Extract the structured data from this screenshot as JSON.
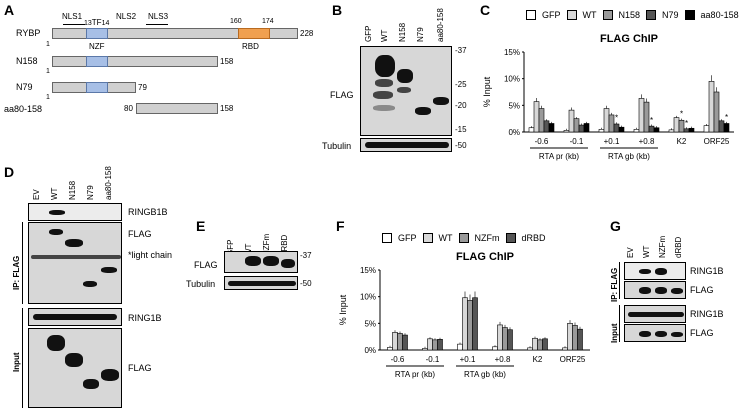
{
  "panels": {
    "A": "A",
    "B": "B",
    "C": "C",
    "D": "D",
    "E": "E",
    "F": "F",
    "G": "G"
  },
  "panelA": {
    "constructs": [
      {
        "label": "RYBP",
        "end_label": "228",
        "start_label": "1"
      },
      {
        "label": "N158",
        "end_label": "158",
        "start_label": "1"
      },
      {
        "label": "N79",
        "end_label": "79",
        "start_label": "1"
      },
      {
        "label": "aa80-158",
        "end_label": "158",
        "start_label": "80"
      }
    ],
    "domains": {
      "nzf": "NZF",
      "rbd": "RBD"
    },
    "nls": [
      "NLS1",
      "NLS2",
      "NLS3"
    ],
    "positions": {
      "p13": "13",
      "tf": "TF",
      "p14": "14",
      "p160": "160",
      "p174": "174"
    },
    "colors": {
      "nzf": "#a7bfe6",
      "rbd": "#f0a050",
      "bar": "#d0d0d0"
    }
  },
  "panelB": {
    "lanes": [
      "GFP",
      "WT",
      "N158",
      "N79",
      "aa80-158"
    ],
    "rows": [
      "FLAG",
      "Tubulin"
    ],
    "markers": [
      "-37",
      "-25",
      "-20",
      "-15",
      "-50"
    ]
  },
  "panelC": {
    "legend": [
      "GFP",
      "WT",
      "N158",
      "N79",
      "aa80-158"
    ],
    "ylabel": "% Input",
    "group_labels": [
      "RTA pr (kb)",
      "RTA gb (kb)"
    ],
    "star": "*"
  },
  "panelD": {
    "lanes": [
      "EV",
      "WT",
      "N158",
      "N79",
      "aa80-158"
    ],
    "row_labels": [
      "RINGB1B",
      "FLAG",
      "*light chain",
      "RING1B",
      "FLAG"
    ],
    "side_labels": [
      "IP: FLAG",
      "Input"
    ]
  },
  "panelE": {
    "lanes": [
      "GFP",
      "WT",
      "NZFm",
      "dRBD"
    ],
    "rows": [
      "FLAG",
      "Tubulin"
    ],
    "markers": [
      "-37",
      "-50"
    ]
  },
  "panelF": {
    "legend": [
      "GFP",
      "WT",
      "NZFm",
      "dRBD"
    ],
    "ylabel": "% Input",
    "group_labels": [
      "RTA pr (kb)",
      "RTA gb (kb)"
    ]
  },
  "panelG": {
    "lanes": [
      "EV",
      "WT",
      "NZFm",
      "dRBD"
    ],
    "row_labels": [
      "RING1B",
      "FLAG",
      "RING1B",
      "FLAG"
    ],
    "side_labels": [
      "IP: FLAG",
      "Input"
    ]
  },
  "chart_data": [
    {
      "type": "bar",
      "title": "FLAG ChIP",
      "ylabel": "% Input",
      "ylim": [
        0,
        15
      ],
      "yticks": [
        "0%",
        "5%",
        "10%",
        "15%"
      ],
      "categories": [
        "-0.6",
        "-0.1",
        "+0.1",
        "+0.8",
        "K2",
        "ORF25"
      ],
      "series": [
        {
          "name": "GFP",
          "color": "#ffffff",
          "values": [
            0.8,
            0.3,
            0.5,
            0.5,
            0.4,
            1.2
          ]
        },
        {
          "name": "WT",
          "color": "#d8d8d8",
          "values": [
            5.7,
            4.1,
            4.4,
            6.3,
            2.7,
            9.5
          ]
        },
        {
          "name": "N158",
          "color": "#9a9a9a",
          "values": [
            4.4,
            2.5,
            3.2,
            5.6,
            2.2,
            7.5
          ]
        },
        {
          "name": "N79",
          "color": "#555555",
          "values": [
            2.1,
            1.3,
            1.5,
            1.1,
            0.6,
            2.1
          ]
        },
        {
          "name": "aa80-158",
          "color": "#000000",
          "values": [
            1.6,
            1.6,
            0.9,
            0.8,
            0.7,
            1.6
          ]
        }
      ]
    },
    {
      "type": "bar",
      "title": "FLAG ChIP",
      "ylabel": "% Input",
      "ylim": [
        0,
        15
      ],
      "yticks": [
        "0%",
        "5%",
        "10%",
        "15%"
      ],
      "categories": [
        "-0.6",
        "-0.1",
        "+0.1",
        "+0.8",
        "K2",
        "ORF25"
      ],
      "series": [
        {
          "name": "GFP",
          "color": "#ffffff",
          "values": [
            0.5,
            0.3,
            1.1,
            0.6,
            0.4,
            0.4
          ]
        },
        {
          "name": "WT",
          "color": "#d8d8d8",
          "values": [
            3.3,
            2.1,
            9.8,
            4.7,
            2.2,
            5.0
          ]
        },
        {
          "name": "NZFm",
          "color": "#9a9a9a",
          "values": [
            3.1,
            1.9,
            9.3,
            4.2,
            1.9,
            4.6
          ]
        },
        {
          "name": "dRBD",
          "color": "#555555",
          "values": [
            2.8,
            2.0,
            9.8,
            3.8,
            2.1,
            3.9
          ]
        }
      ]
    }
  ]
}
